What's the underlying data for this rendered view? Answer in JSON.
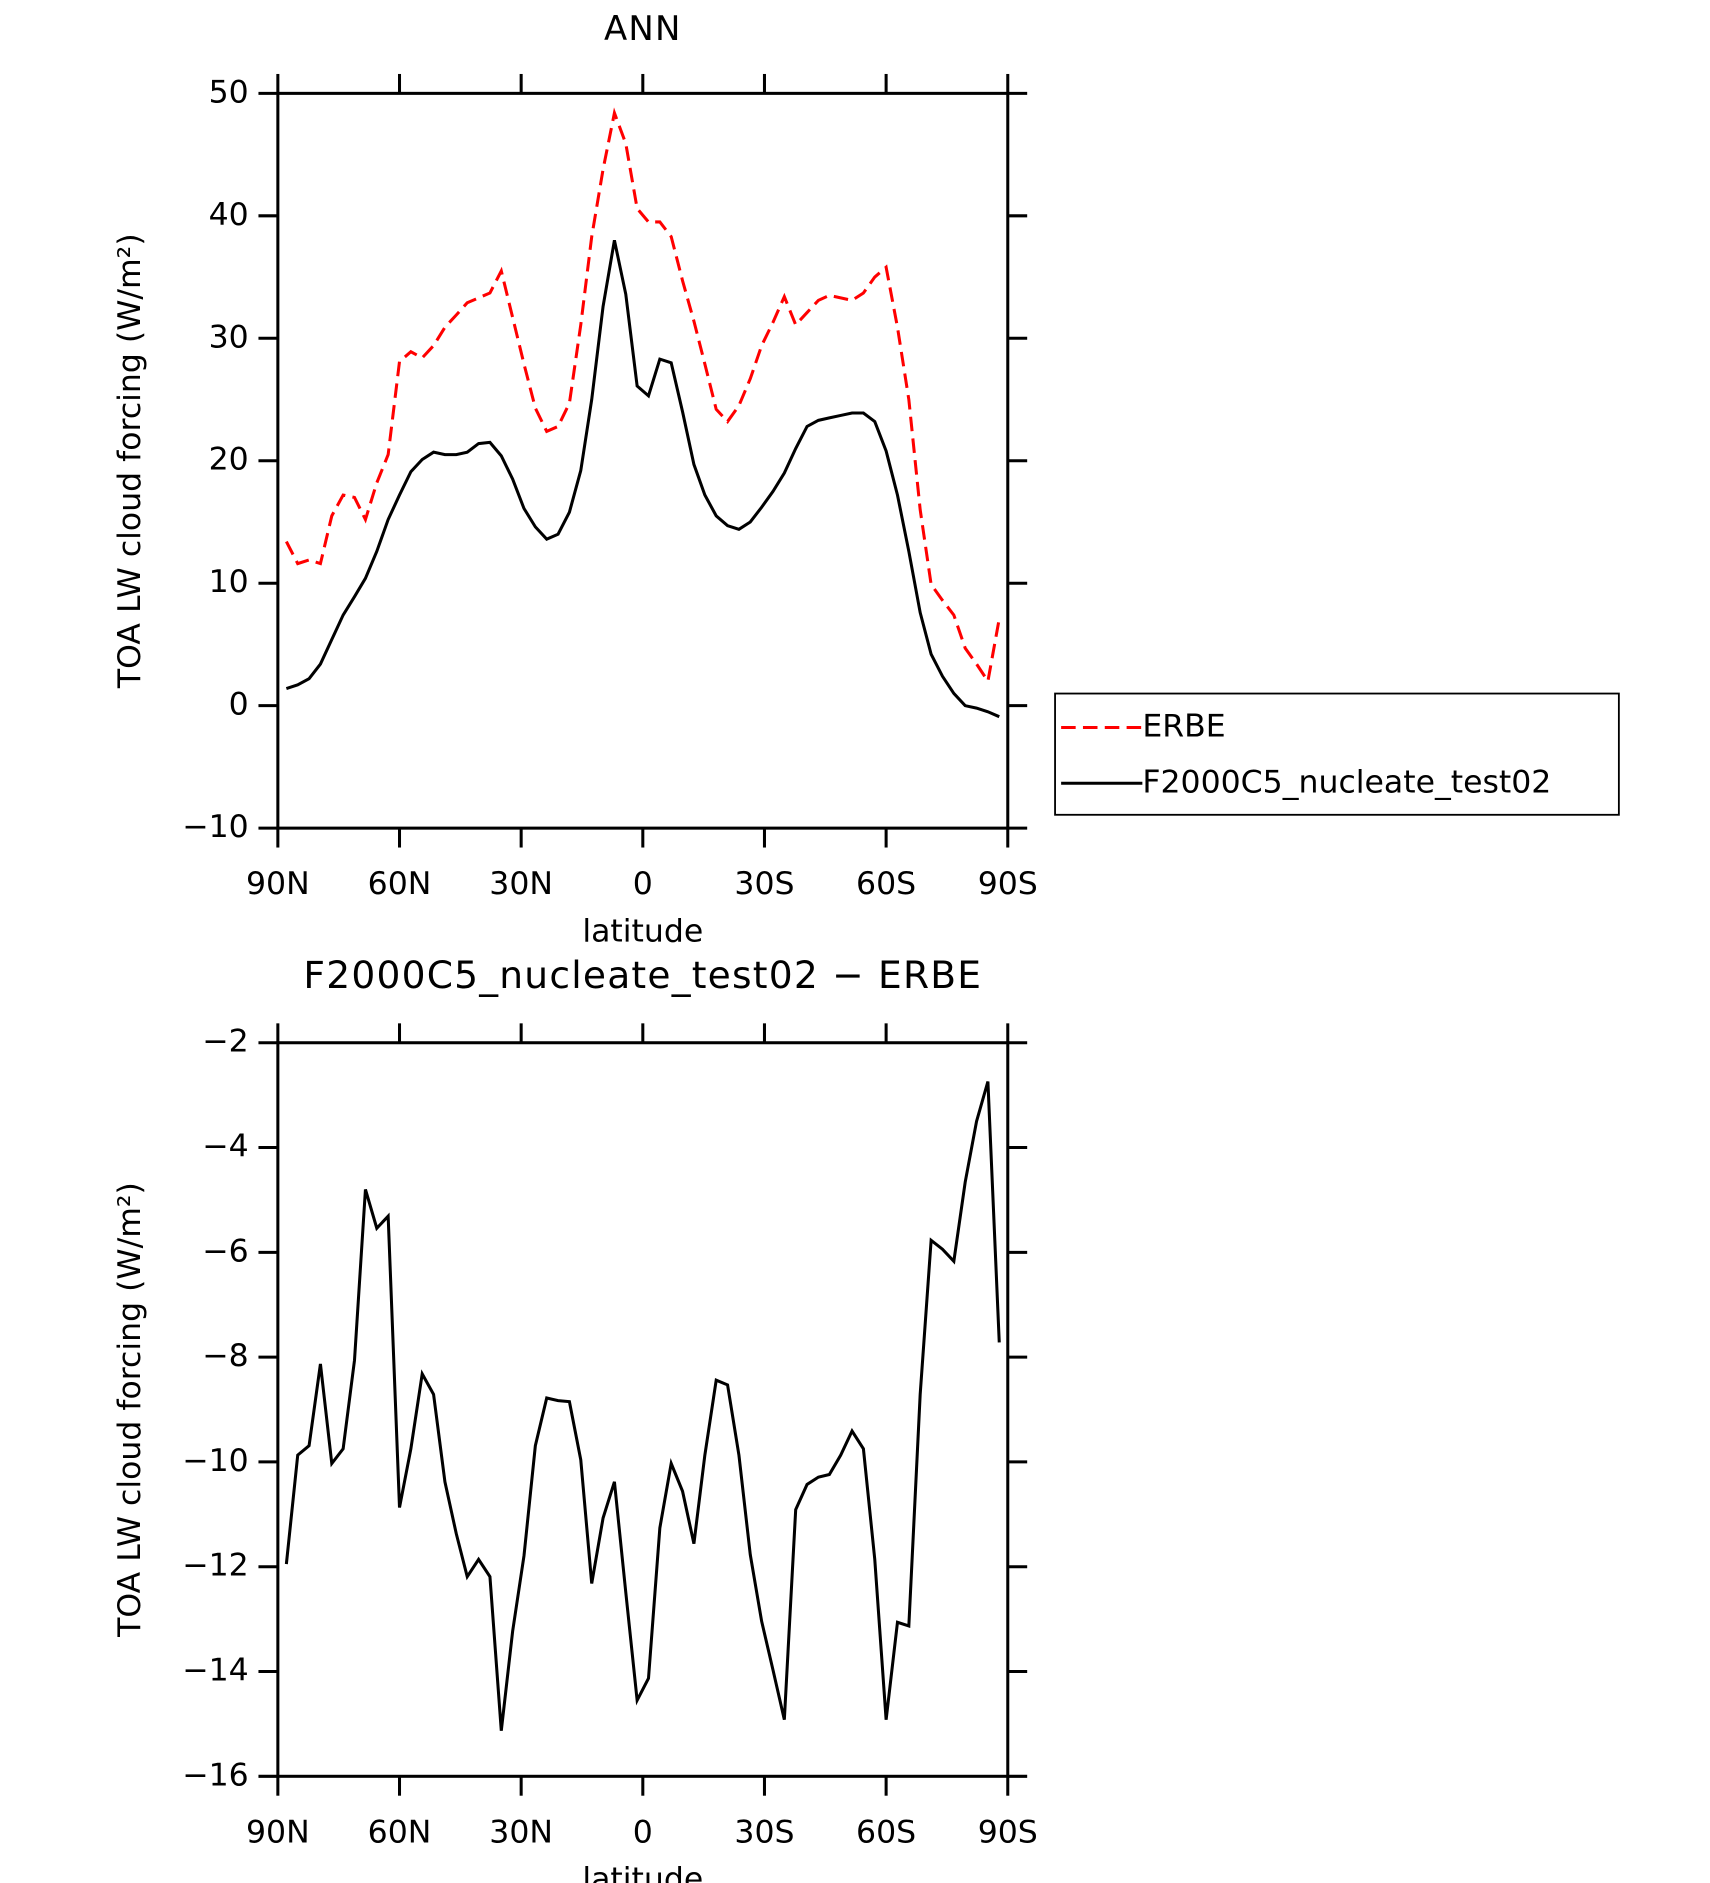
{
  "chart_data": [
    {
      "type": "line",
      "title": "ANN",
      "xlabel": "latitude",
      "ylabel": "TOA LW cloud forcing (W/m²)",
      "x": [
        87.9,
        85.1,
        82.3,
        79.5,
        76.7,
        73.9,
        71.1,
        68.4,
        65.6,
        62.8,
        60.0,
        57.2,
        54.4,
        51.6,
        48.8,
        46.0,
        43.3,
        40.5,
        37.7,
        34.9,
        32.1,
        29.3,
        26.5,
        23.7,
        20.9,
        18.1,
        15.3,
        12.6,
        9.8,
        7.0,
        4.2,
        1.4,
        -1.4,
        -4.2,
        -7.0,
        -9.8,
        -12.6,
        -15.3,
        -18.1,
        -20.9,
        -23.7,
        -26.5,
        -29.3,
        -32.1,
        -34.9,
        -37.7,
        -40.5,
        -43.3,
        -46.0,
        -48.8,
        -51.6,
        -54.4,
        -57.2,
        -60.0,
        -62.8,
        -65.6,
        -68.4,
        -71.1,
        -73.9,
        -76.7,
        -79.5,
        -82.3,
        -85.1,
        -87.9
      ],
      "series": [
        {
          "name": "ERBE",
          "color": "#ff0000",
          "dash": true,
          "values": [
            13.4,
            11.6,
            11.9,
            11.6,
            15.5,
            17.2,
            17.0,
            15.2,
            18.2,
            20.5,
            28.1,
            28.9,
            28.4,
            29.4,
            30.9,
            31.9,
            32.9,
            33.3,
            33.7,
            35.5,
            31.7,
            27.9,
            24.3,
            22.4,
            22.8,
            24.7,
            31.1,
            38.3,
            43.8,
            48.4,
            45.9,
            40.6,
            39.5,
            39.5,
            38.3,
            34.7,
            31.4,
            27.9,
            24.2,
            23.2,
            24.5,
            26.7,
            29.4,
            31.3,
            33.4,
            31.1,
            32.1,
            33.1,
            33.5,
            33.3,
            33.1,
            33.7,
            35.0,
            35.8,
            30.9,
            25.0,
            16.0,
            9.9,
            8.6,
            7.4,
            4.7,
            3.4,
            2.0,
            7.1
          ]
        },
        {
          "name": "F2000C5_nucleate_test02",
          "color": "#000000",
          "dash": false,
          "values": [
            1.4,
            1.7,
            2.2,
            3.4,
            5.4,
            7.4,
            8.9,
            10.4,
            12.6,
            15.2,
            17.2,
            19.1,
            20.1,
            20.7,
            20.5,
            20.5,
            20.7,
            21.4,
            21.5,
            20.4,
            18.5,
            16.1,
            14.6,
            13.6,
            14.0,
            15.8,
            19.2,
            25.0,
            32.6,
            38.0,
            33.6,
            26.1,
            25.3,
            28.3,
            28.0,
            24.0,
            19.7,
            17.2,
            15.5,
            14.7,
            14.4,
            15.0,
            16.2,
            17.5,
            19.0,
            21.0,
            22.8,
            23.3,
            23.5,
            23.7,
            23.9,
            23.9,
            23.2,
            20.8,
            17.2,
            12.6,
            7.6,
            4.2,
            2.4,
            1.0,
            0.0,
            -0.2,
            -0.5,
            -0.9
          ]
        }
      ],
      "xlim": [
        90,
        -90
      ],
      "ylim": [
        -10,
        50
      ],
      "xticks": [
        {
          "value": 90,
          "label": "90N"
        },
        {
          "value": 60,
          "label": "60N"
        },
        {
          "value": 30,
          "label": "30N"
        },
        0,
        {
          "value": -30,
          "label": "30S"
        },
        {
          "value": -60,
          "label": "60S"
        },
        {
          "value": -90,
          "label": "90S"
        }
      ],
      "yticks": [
        {
          "value": -10,
          "label": "−10"
        },
        0,
        10,
        20,
        30,
        40,
        50
      ],
      "legend": "right"
    },
    {
      "type": "line",
      "title": "F2000C5_nucleate_test02 − ERBE",
      "xlabel": "latitude",
      "ylabel": "TOA LW cloud forcing (W/m²)",
      "x": [
        87.9,
        85.1,
        82.3,
        79.5,
        76.7,
        73.9,
        71.1,
        68.4,
        65.6,
        62.8,
        60.0,
        57.2,
        54.4,
        51.6,
        48.8,
        46.0,
        43.3,
        40.5,
        37.7,
        34.9,
        32.1,
        29.3,
        26.5,
        23.7,
        20.9,
        18.1,
        15.3,
        12.6,
        9.8,
        7.0,
        4.2,
        1.4,
        -1.4,
        -4.2,
        -7.0,
        -9.8,
        -12.6,
        -15.3,
        -18.1,
        -20.9,
        -23.7,
        -26.5,
        -29.3,
        -32.1,
        -34.9,
        -37.7,
        -40.5,
        -43.3,
        -46.0,
        -48.8,
        -51.6,
        -54.4,
        -57.2,
        -60.0,
        -62.8,
        -65.6,
        -68.4,
        -71.1,
        -73.9,
        -76.7,
        -79.5,
        -82.3,
        -85.1,
        -87.9
      ],
      "series": [
        {
          "color": "#000000",
          "dash": false,
          "values": [
            -11.95,
            -9.87,
            -9.69,
            -8.13,
            -10.03,
            -9.75,
            -8.06,
            -4.8,
            -5.54,
            -5.31,
            -10.87,
            -9.75,
            -8.32,
            -8.71,
            -10.38,
            -11.37,
            -12.19,
            -11.86,
            -12.19,
            -15.13,
            -13.23,
            -11.79,
            -9.69,
            -8.78,
            -8.83,
            -8.85,
            -9.96,
            -12.32,
            -11.07,
            -10.38,
            -12.49,
            -14.55,
            -14.13,
            -11.26,
            -10.03,
            -10.56,
            -11.56,
            -9.87,
            -8.44,
            -8.53,
            -9.87,
            -11.77,
            -13.04,
            -13.97,
            -14.92,
            -10.91,
            -10.43,
            -10.29,
            -10.24,
            -9.87,
            -9.41,
            -9.75,
            -11.86,
            -14.92,
            -13.06,
            -13.13,
            -8.71,
            -5.77,
            -5.94,
            -6.17,
            -4.66,
            -3.5,
            -2.74,
            -7.72
          ]
        }
      ],
      "xlim": [
        90,
        -90
      ],
      "ylim": [
        -16,
        -2
      ],
      "xticks": [
        {
          "value": 90,
          "label": "90N"
        },
        {
          "value": 60,
          "label": "60N"
        },
        {
          "value": 30,
          "label": "30N"
        },
        0,
        {
          "value": -30,
          "label": "30S"
        },
        {
          "value": -60,
          "label": "60S"
        },
        {
          "value": -90,
          "label": "90S"
        }
      ],
      "yticks": [
        {
          "value": -16,
          "label": "−16"
        },
        {
          "value": -14,
          "label": "−14"
        },
        {
          "value": -12,
          "label": "−12"
        },
        {
          "value": -10,
          "label": "−10"
        },
        {
          "value": -8,
          "label": "−8"
        },
        {
          "value": -6,
          "label": "−6"
        },
        {
          "value": -4,
          "label": "−4"
        },
        {
          "value": -2,
          "label": "−2"
        }
      ]
    }
  ]
}
